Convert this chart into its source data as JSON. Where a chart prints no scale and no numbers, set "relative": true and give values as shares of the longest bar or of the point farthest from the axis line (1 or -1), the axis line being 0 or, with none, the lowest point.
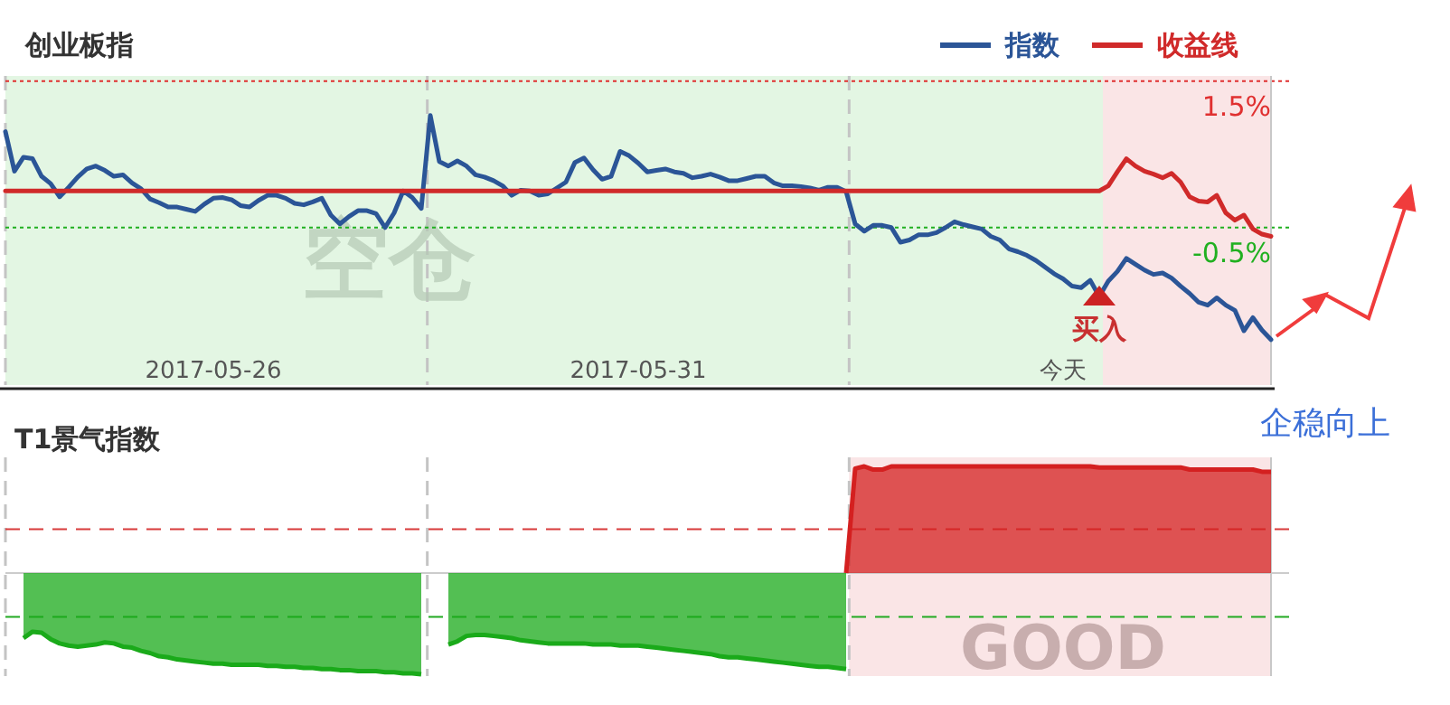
{
  "chart_data": [
    {
      "type": "line",
      "title": "创业板指",
      "legend": "top right",
      "ylim": [
        -2.65,
        1.57
      ],
      "yticks": [
        {
          "value": 1.5,
          "label": "1.5%"
        },
        {
          "value": -0.5,
          "label": "-0.5%"
        }
      ],
      "categories": [
        null,
        null,
        null,
        null,
        null,
        null,
        null,
        null,
        null,
        null,
        null,
        null,
        null,
        null,
        null,
        null,
        null,
        null,
        null,
        null,
        null,
        null,
        null,
        "2017-05-26",
        null,
        null,
        null,
        null,
        null,
        null,
        null,
        null,
        null,
        null,
        null,
        null,
        null,
        null,
        null,
        null,
        null,
        null,
        null,
        null,
        null,
        null,
        null,
        null,
        null,
        null,
        null,
        null,
        null,
        null,
        null,
        null,
        null,
        null,
        null,
        null,
        null,
        null,
        null,
        null,
        null,
        null,
        null,
        null,
        null,
        null,
        "2017-05-31",
        null,
        null,
        null,
        null,
        null,
        null,
        null,
        null,
        null,
        null,
        null,
        null,
        null,
        null,
        null,
        null,
        null,
        null,
        null,
        null,
        null,
        null,
        null,
        null,
        null,
        null,
        null,
        null,
        null,
        null,
        null,
        null,
        null,
        null,
        null,
        null,
        null,
        null,
        null,
        null,
        null,
        null,
        null,
        null,
        null,
        null,
        "今天",
        null,
        null,
        null,
        null,
        null,
        null,
        null,
        null,
        null,
        null,
        null,
        null,
        null,
        null,
        null,
        null,
        null,
        null,
        null,
        null,
        null,
        null,
        null
      ],
      "series": [
        {
          "name": "指数",
          "color": "#2b5597",
          "values": [
            0.81,
            0.27,
            0.46,
            0.44,
            0.2,
            0.1,
            -0.08,
            0.05,
            0.19,
            0.3,
            0.34,
            0.28,
            0.2,
            0.22,
            0.11,
            0.03,
            -0.11,
            -0.16,
            -0.22,
            -0.22,
            -0.25,
            -0.28,
            -0.18,
            -0.1,
            -0.09,
            -0.12,
            -0.2,
            -0.22,
            -0.13,
            -0.06,
            -0.06,
            -0.1,
            -0.17,
            -0.19,
            -0.15,
            -0.1,
            -0.33,
            -0.45,
            -0.35,
            -0.27,
            -0.27,
            -0.31,
            -0.5,
            -0.3,
            0.0,
            -0.09,
            -0.24,
            1.03,
            0.4,
            0.34,
            0.41,
            0.34,
            0.22,
            0.19,
            0.14,
            0.07,
            -0.06,
            0.01,
            0.0,
            -0.06,
            -0.04,
            0.04,
            0.12,
            0.39,
            0.45,
            0.29,
            0.16,
            0.2,
            0.54,
            0.48,
            0.38,
            0.26,
            0.28,
            0.3,
            0.26,
            0.24,
            0.18,
            0.2,
            0.23,
            0.19,
            0.14,
            0.14,
            0.17,
            0.2,
            0.2,
            0.11,
            0.07,
            0.07,
            0.06,
            0.04,
            0.01,
            0.05,
            0.05,
            -0.01,
            -0.45,
            -0.55,
            -0.47,
            -0.47,
            -0.5,
            -0.7,
            -0.67,
            -0.6,
            -0.6,
            -0.57,
            -0.5,
            -0.42,
            -0.46,
            -0.49,
            -0.52,
            -0.62,
            -0.67,
            -0.79,
            -0.83,
            -0.88,
            -0.95,
            -1.04,
            -1.13,
            -1.2,
            -1.3,
            -1.32,
            -1.22,
            -1.44,
            -1.23,
            -1.1,
            -0.92,
            -1.0,
            -1.08,
            -1.14,
            -1.12,
            -1.19,
            -1.3,
            -1.4,
            -1.52,
            -1.56,
            -1.46,
            -1.56,
            -1.63,
            -1.91,
            -1.73,
            -1.9,
            -2.03
          ]
        },
        {
          "name": "收益线",
          "color": "#d02a2a",
          "values": [
            0,
            0,
            0,
            0,
            0,
            0,
            0,
            0,
            0,
            0,
            0,
            0,
            0,
            0,
            0,
            0,
            0,
            0,
            0,
            0,
            0,
            0,
            0,
            0,
            0,
            0,
            0,
            0,
            0,
            0,
            0,
            0,
            0,
            0,
            0,
            0,
            0,
            0,
            0,
            0,
            0,
            0,
            0,
            0,
            0,
            0,
            0,
            0,
            0,
            0,
            0,
            0,
            0,
            0,
            0,
            0,
            0,
            0,
            0,
            0,
            0,
            0,
            0,
            0,
            0,
            0,
            0,
            0,
            0,
            0,
            0,
            0,
            0,
            0,
            0,
            0,
            0,
            0,
            0,
            0,
            0,
            0,
            0,
            0,
            0,
            0,
            0,
            0,
            0,
            0,
            0,
            0,
            0,
            0,
            0,
            0,
            0,
            0,
            0,
            0,
            0,
            0,
            0,
            0,
            0,
            0,
            0,
            0,
            0,
            0,
            0,
            0,
            0,
            0,
            0,
            0,
            0,
            0,
            0,
            0,
            0,
            0,
            0.07,
            0.26,
            0.44,
            0.34,
            0.27,
            0.23,
            0.18,
            0.24,
            0.12,
            -0.08,
            -0.14,
            -0.15,
            -0.06,
            -0.3,
            -0.4,
            -0.33,
            -0.52,
            -0.59,
            -0.62
          ]
        }
      ],
      "ref_lines": [
        {
          "axis": "y",
          "value": 1.5,
          "color": "#e03030",
          "line_style": "dotted"
        },
        {
          "axis": "y",
          "value": -0.5,
          "color": "#20b020",
          "line_style": "dotted"
        }
      ],
      "annotations": [
        "空仓",
        "买入"
      ]
    },
    {
      "type": "area",
      "title": "T1景气指数",
      "relative": true,
      "categories": [
        null,
        null,
        null,
        null,
        null,
        null,
        null,
        null,
        null,
        null,
        null,
        null,
        null,
        null,
        null,
        null,
        null,
        null,
        null,
        null,
        null,
        null,
        null,
        null,
        null,
        null,
        null,
        null,
        null,
        null,
        null,
        null,
        null,
        null,
        null,
        null,
        null,
        null,
        null,
        null,
        null,
        null,
        null,
        null,
        null,
        null,
        null,
        null,
        null,
        null,
        null,
        null,
        null,
        null,
        null,
        null,
        null,
        null,
        null,
        null,
        null,
        null,
        null,
        null,
        null,
        null,
        null,
        null,
        null,
        null,
        null,
        null,
        null,
        null,
        null,
        null,
        null,
        null,
        null,
        null,
        null,
        null,
        null,
        null,
        null,
        null,
        null,
        null,
        null,
        null,
        null,
        null,
        null,
        null,
        null,
        null,
        null,
        null,
        null,
        null,
        null,
        null,
        null,
        null,
        null,
        null,
        null,
        null,
        null,
        null,
        null,
        null,
        null,
        null,
        null,
        null,
        null,
        null,
        null,
        null,
        null,
        null,
        null,
        null,
        null,
        null,
        null,
        null,
        null,
        null,
        null,
        null,
        null,
        null,
        null,
        null,
        null,
        null,
        null,
        null,
        null
      ],
      "series": [
        {
          "color": "#1aaa1a",
          "values": [
            null,
            null,
            -0.61,
            -0.55,
            -0.56,
            -0.62,
            -0.66,
            -0.68,
            -0.69,
            -0.68,
            -0.67,
            -0.65,
            -0.66,
            -0.69,
            -0.7,
            -0.73,
            -0.75,
            -0.78,
            -0.79,
            -0.81,
            -0.82,
            -0.83,
            -0.84,
            -0.85,
            -0.85,
            -0.86,
            -0.86,
            -0.86,
            -0.86,
            -0.87,
            -0.87,
            -0.88,
            -0.88,
            -0.89,
            -0.89,
            -0.9,
            -0.9,
            -0.91,
            -0.91,
            -0.92,
            -0.92,
            -0.92,
            -0.93,
            -0.93,
            -0.94,
            -0.94,
            -0.95,
            null,
            null,
            -0.67,
            -0.64,
            -0.59,
            -0.58,
            -0.58,
            -0.59,
            -0.6,
            -0.61,
            -0.63,
            -0.64,
            -0.65,
            -0.66,
            -0.66,
            -0.66,
            -0.66,
            -0.66,
            -0.67,
            -0.67,
            -0.67,
            -0.68,
            -0.68,
            -0.68,
            -0.69,
            -0.7,
            -0.71,
            -0.72,
            -0.73,
            -0.74,
            -0.75,
            -0.76,
            -0.78,
            -0.79,
            -0.79,
            -0.8,
            -0.81,
            -0.82,
            -0.83,
            -0.84,
            -0.85,
            -0.86,
            -0.87,
            -0.88,
            -0.88,
            -0.89,
            -0.9,
            null,
            null,
            null,
            null,
            null,
            null,
            null,
            null,
            null,
            null,
            null,
            null,
            null,
            null,
            null,
            null,
            null,
            null,
            null,
            null,
            null,
            null,
            null,
            null,
            null,
            null,
            null,
            null,
            null,
            null,
            null,
            null,
            null,
            null,
            null,
            null,
            null,
            null,
            null,
            null,
            null,
            null,
            null,
            null,
            null,
            null,
            null
          ]
        },
        {
          "color": "#d42020",
          "values": [
            null,
            null,
            null,
            null,
            null,
            null,
            null,
            null,
            null,
            null,
            null,
            null,
            null,
            null,
            null,
            null,
            null,
            null,
            null,
            null,
            null,
            null,
            null,
            null,
            null,
            null,
            null,
            null,
            null,
            null,
            null,
            null,
            null,
            null,
            null,
            null,
            null,
            null,
            null,
            null,
            null,
            null,
            null,
            null,
            null,
            null,
            null,
            null,
            null,
            null,
            null,
            null,
            null,
            null,
            null,
            null,
            null,
            null,
            null,
            null,
            null,
            null,
            null,
            null,
            null,
            null,
            null,
            null,
            null,
            null,
            null,
            null,
            null,
            null,
            null,
            null,
            null,
            null,
            null,
            null,
            null,
            null,
            null,
            null,
            null,
            null,
            null,
            null,
            null,
            null,
            null,
            null,
            null,
            0,
            0.98,
            1,
            0.97,
            0.97,
            1,
            1,
            1,
            1,
            1,
            1,
            1,
            1,
            1,
            1,
            1,
            1,
            1,
            1,
            1,
            1,
            1,
            1,
            1,
            1,
            1,
            1,
            1,
            0.99,
            0.99,
            0.99,
            0.99,
            0.99,
            0.99,
            0.99,
            0.99,
            0.99,
            0.99,
            0.97,
            0.97,
            0.97,
            0.97,
            0.97,
            0.97,
            0.97,
            0.97,
            0.95,
            0.95
          ]
        }
      ],
      "ref_lines": [
        {
          "axis": "y",
          "value": 0.41,
          "color": "#d83a3a",
          "line_style": "dashed"
        },
        {
          "axis": "y",
          "value": 0,
          "color": "#cccccc",
          "line_style": "solid"
        },
        {
          "axis": "y",
          "value": -0.41,
          "color": "#22aa22",
          "line_style": "dashed"
        }
      ],
      "annotations": [
        "GOOD",
        "企稳向上"
      ]
    }
  ]
}
